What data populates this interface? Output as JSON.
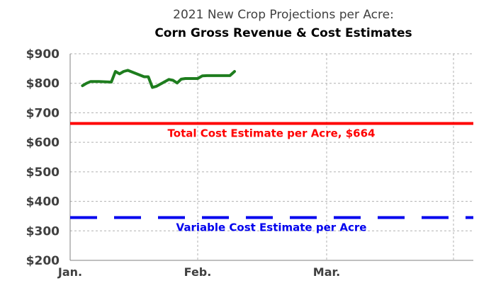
{
  "chart_data": {
    "type": "line",
    "title": "2021 New Crop Projections per Acre:",
    "subtitle": "Corn Gross Revenue & Cost Estimates",
    "xlabel": "",
    "ylabel": "",
    "ylim": [
      200,
      900
    ],
    "yticks": [
      "$900",
      "$800",
      "$700",
      "$600",
      "$500",
      "$400",
      "$300",
      "$200"
    ],
    "xticks": [
      "Jan.",
      "Feb.",
      "Mar."
    ],
    "grid": true,
    "series": [
      {
        "name": "",
        "color": "#1e7d1e",
        "style": "solid",
        "x": [
          "2021-01-04",
          "2021-01-05",
          "2021-01-06",
          "2021-01-07",
          "2021-01-08",
          "2021-01-11",
          "2021-01-12",
          "2021-01-13",
          "2021-01-14",
          "2021-01-15",
          "2021-01-19",
          "2021-01-20",
          "2021-01-21",
          "2021-01-22",
          "2021-01-25",
          "2021-01-26",
          "2021-01-27",
          "2021-01-28",
          "2021-01-29",
          "2021-02-01",
          "2021-02-02",
          "2021-02-03",
          "2021-02-04",
          "2021-02-05",
          "2021-02-08",
          "2021-02-09"
        ],
        "y": [
          792,
          800,
          806,
          806,
          806,
          804,
          840,
          832,
          840,
          844,
          822,
          822,
          786,
          790,
          813,
          810,
          801,
          814,
          816,
          816,
          825,
          826,
          826,
          826,
          826,
          840
        ]
      },
      {
        "name": "Total Cost Estimate per Acre, $664",
        "color": "#ff0000",
        "style": "solid",
        "value": 664
      },
      {
        "name": "Variable Cost Estimate per Acre",
        "color": "#0000ee",
        "style": "dashed",
        "value": 345
      }
    ]
  }
}
